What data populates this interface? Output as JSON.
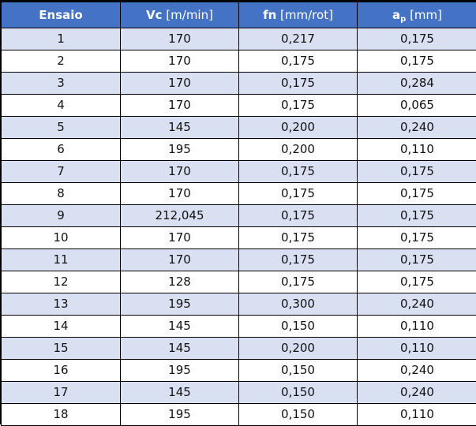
{
  "table": {
    "headers": [
      {
        "bold": "Ensaio",
        "sub": "",
        "rest": ""
      },
      {
        "bold": "Vc",
        "sub": "",
        "rest": " [m/min]"
      },
      {
        "bold": "fn",
        "sub": "",
        "rest": " [mm/rot]"
      },
      {
        "bold": "a",
        "sub": "p",
        "rest": " [mm]"
      }
    ],
    "rows": [
      [
        "1",
        "170",
        "0,217",
        "0,175"
      ],
      [
        "2",
        "170",
        "0,175",
        "0,175"
      ],
      [
        "3",
        "170",
        "0,175",
        "0,284"
      ],
      [
        "4",
        "170",
        "0,175",
        "0,065"
      ],
      [
        "5",
        "145",
        "0,200",
        "0,240"
      ],
      [
        "6",
        "195",
        "0,200",
        "0,110"
      ],
      [
        "7",
        "170",
        "0,175",
        "0,175"
      ],
      [
        "8",
        "170",
        "0,175",
        "0,175"
      ],
      [
        "9",
        "212,045",
        "0,175",
        "0,175"
      ],
      [
        "10",
        "170",
        "0,175",
        "0,175"
      ],
      [
        "11",
        "170",
        "0,175",
        "0,175"
      ],
      [
        "12",
        "128",
        "0,175",
        "0,175"
      ],
      [
        "13",
        "195",
        "0,300",
        "0,240"
      ],
      [
        "14",
        "145",
        "0,150",
        "0,110"
      ],
      [
        "15",
        "145",
        "0,200",
        "0,110"
      ],
      [
        "16",
        "195",
        "0,150",
        "0,240"
      ],
      [
        "17",
        "145",
        "0,150",
        "0,240"
      ],
      [
        "18",
        "195",
        "0,150",
        "0,110"
      ]
    ],
    "colors": {
      "header_bg": "#4472c4",
      "band_bg": "#d9e0f1",
      "plain_bg": "#ffffff"
    }
  }
}
